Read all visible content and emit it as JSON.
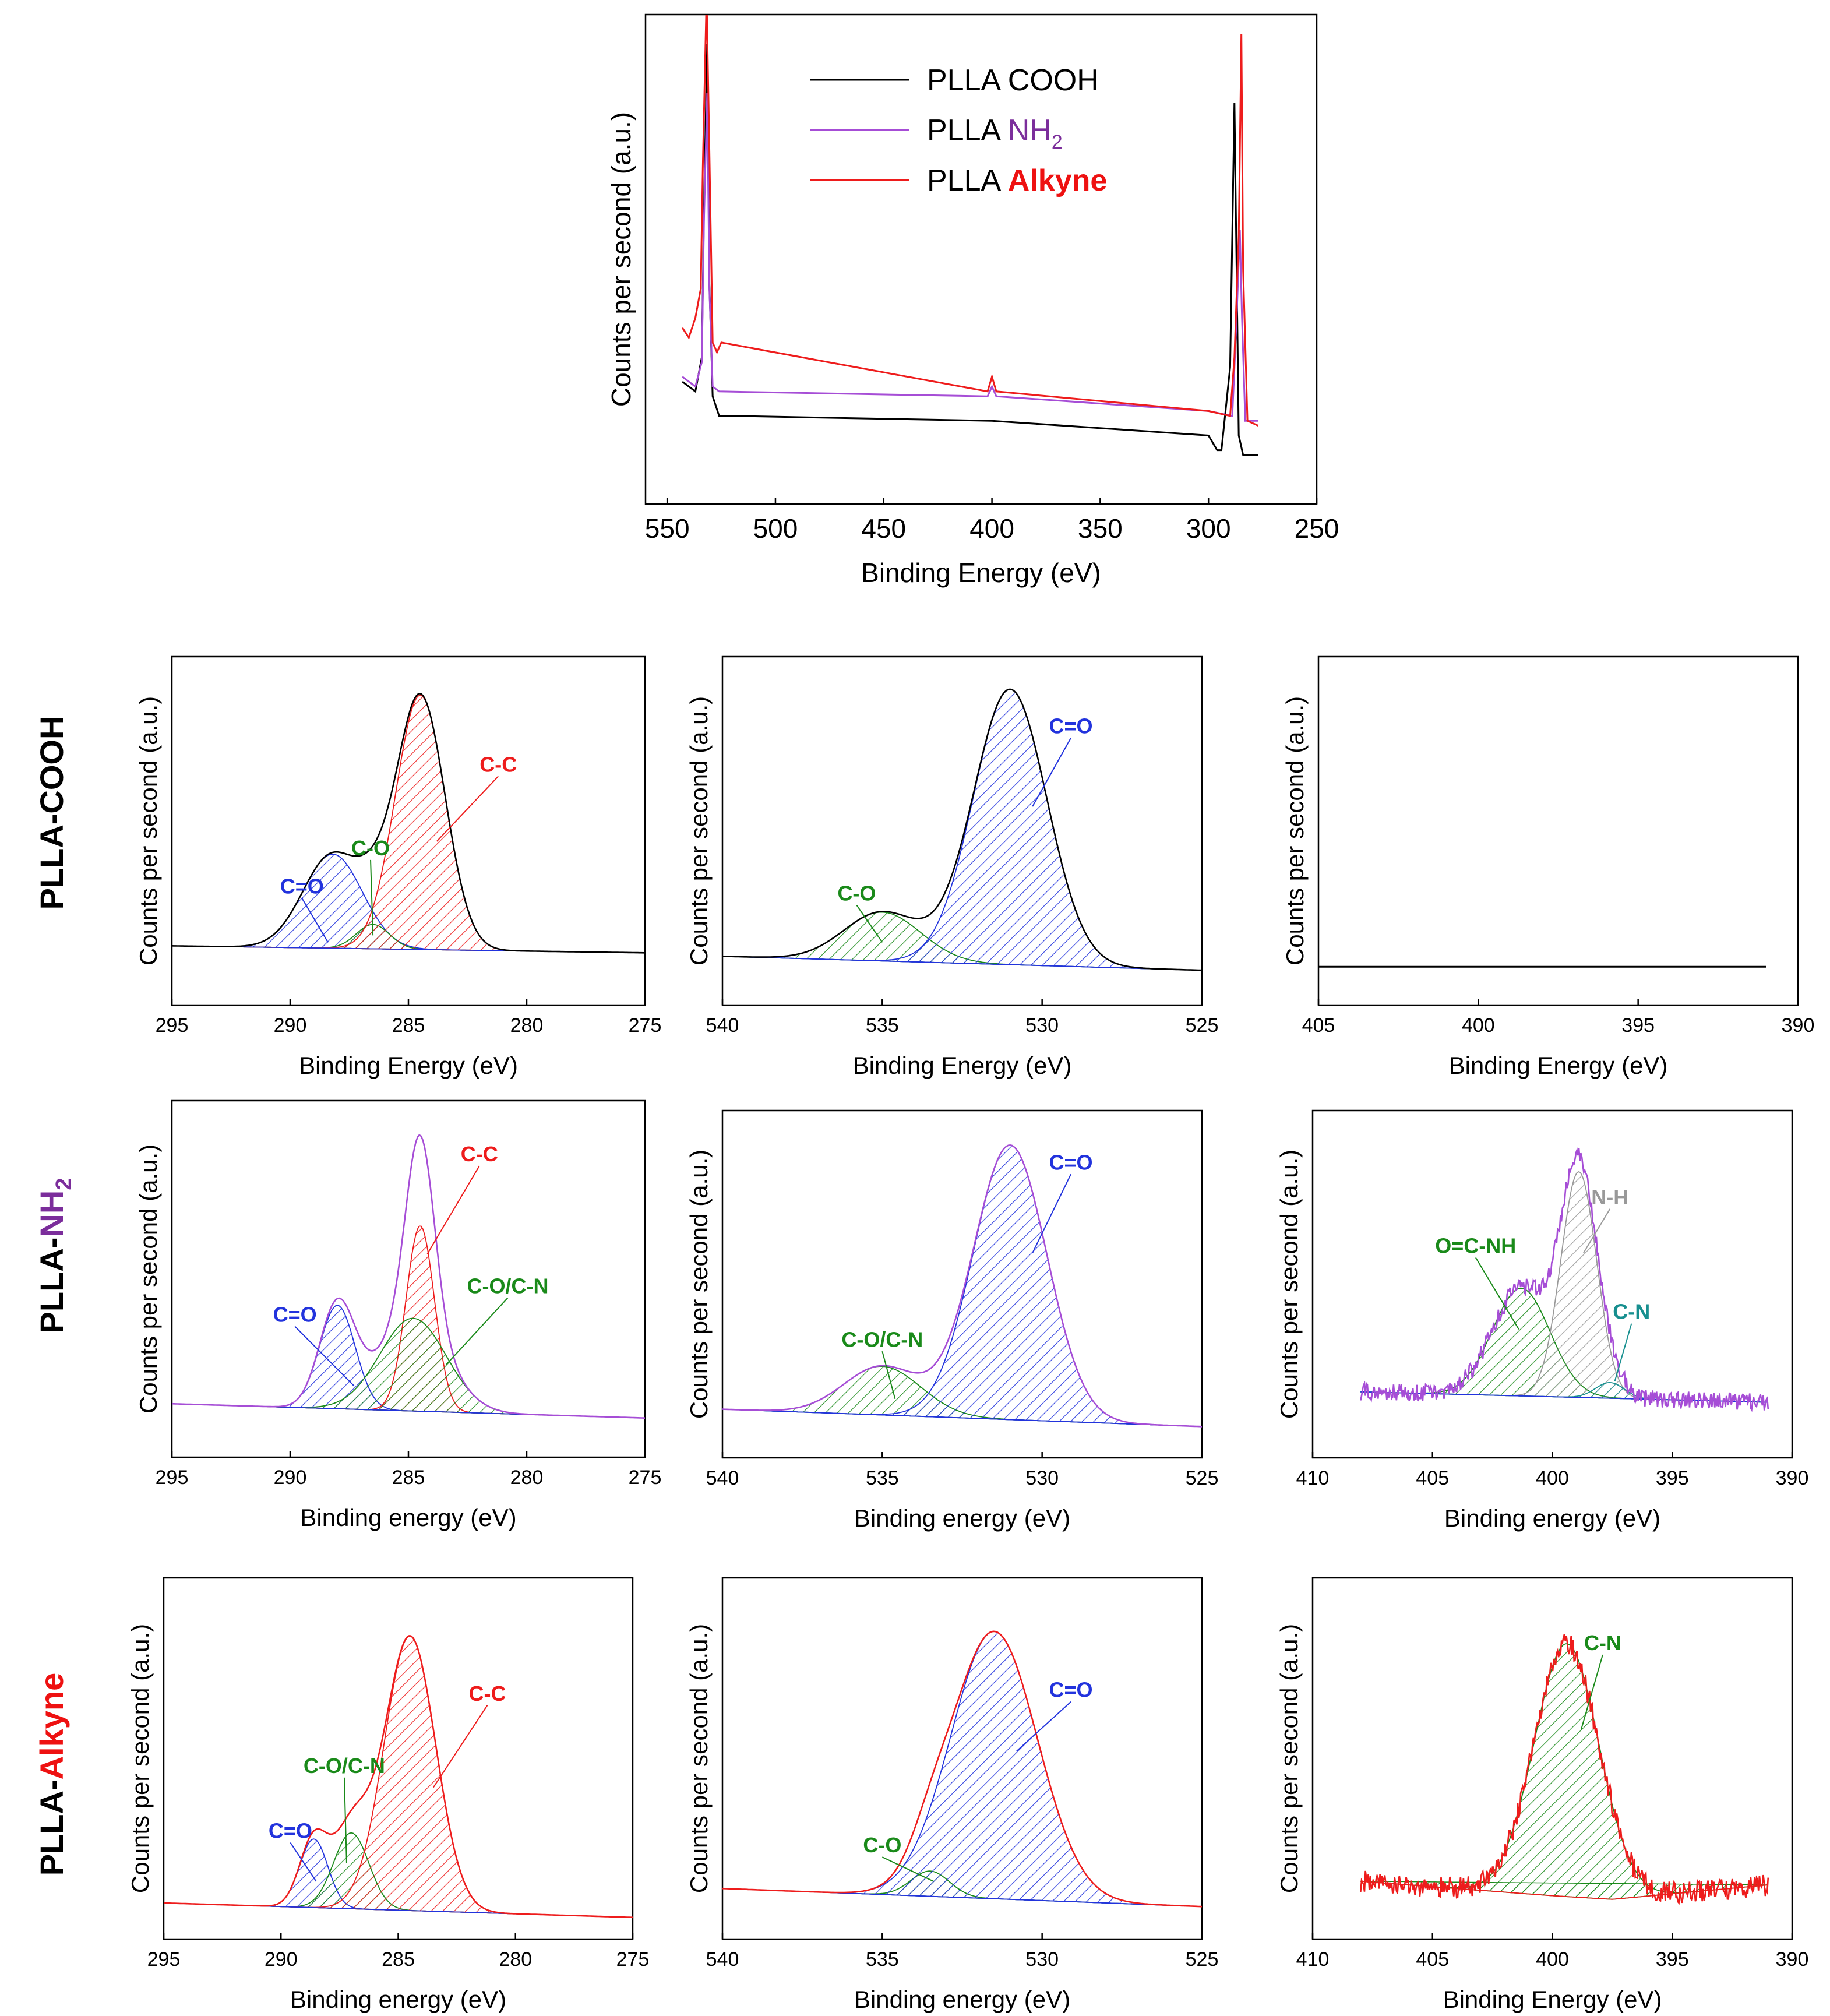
{
  "row_labels": [
    {
      "prefix": "PLLA-",
      "suffix": "COOH",
      "suffix_sub": "",
      "color": "#000000"
    },
    {
      "prefix": "PLLA-",
      "suffix": "NH",
      "suffix_sub": "2",
      "color": "#7b2d9b"
    },
    {
      "prefix": "PLLA-",
      "suffix": "Alkyne",
      "suffix_sub": "",
      "color": "#ee1111"
    }
  ],
  "colors": {
    "cooh": "#000000",
    "nh2": "#a64dd6",
    "alkyne": "#ee1c1c",
    "blue": "#2233dd",
    "green": "#1a8a1a",
    "red": "#ee1c1c",
    "gray": "#999999",
    "teal": "#178f8f",
    "nh2_label": "#7b2d9b"
  },
  "chart_data": [
    {
      "id": "survey",
      "type": "line",
      "xlabel": "Binding Energy (eV)",
      "ylabel": "Counts per second (a.u.)",
      "xlim": [
        560,
        250
      ],
      "ylim": [
        0,
        100
      ],
      "xticks": [
        550,
        500,
        450,
        400,
        350,
        300,
        250
      ],
      "legend_position": "top-center",
      "series": [
        {
          "name": "PLLA COOH",
          "legend_prefix": "PLLA ",
          "legend_suffix": "COOH",
          "legend_sub": "",
          "line_color": "#000000",
          "label_color": "#000000",
          "label_bold": false,
          "points": [
            [
              543,
              25
            ],
            [
              537,
              23
            ],
            [
              534,
              30
            ],
            [
              533,
              60
            ],
            [
              531.5,
              94
            ],
            [
              530.5,
              45
            ],
            [
              529,
              22
            ],
            [
              526,
              18
            ],
            [
              520,
              18
            ],
            [
              400,
              17
            ],
            [
              300,
              14
            ],
            [
              296,
              11
            ],
            [
              294,
              11
            ],
            [
              290,
              28
            ],
            [
              288,
              82
            ],
            [
              286,
              14
            ],
            [
              284,
              10
            ],
            [
              277,
              10
            ]
          ]
        },
        {
          "name": "PLLA NH2",
          "legend_prefix": "PLLA ",
          "legend_suffix": "NH",
          "legend_sub": "2",
          "line_color": "#a64dd6",
          "label_color": "#7b2d9b",
          "label_bold": false,
          "points": [
            [
              543,
              26
            ],
            [
              537,
              24
            ],
            [
              534,
              29
            ],
            [
              533,
              58
            ],
            [
              531.5,
              84
            ],
            [
              530.5,
              44
            ],
            [
              529,
              24
            ],
            [
              526,
              23
            ],
            [
              402,
              22
            ],
            [
              400,
              24
            ],
            [
              398,
              22
            ],
            [
              300,
              19
            ],
            [
              289,
              18
            ],
            [
              287,
              38
            ],
            [
              285.5,
              56
            ],
            [
              284.5,
              38
            ],
            [
              283,
              17
            ],
            [
              277,
              17
            ]
          ]
        },
        {
          "name": "PLLA Alkyne",
          "legend_prefix": "PLLA ",
          "legend_suffix": "Alkyne",
          "legend_sub": "",
          "line_color": "#ee1c1c",
          "label_color": "#ee1111",
          "label_bold": true,
          "points": [
            [
              543,
              36
            ],
            [
              540,
              34
            ],
            [
              537,
              38
            ],
            [
              534.5,
              44
            ],
            [
              533.5,
              70
            ],
            [
              531.8,
              104
            ],
            [
              530.5,
              72
            ],
            [
              529,
              33
            ],
            [
              527,
              31
            ],
            [
              525,
              33
            ],
            [
              402,
              23
            ],
            [
              400,
              26
            ],
            [
              398,
              23
            ],
            [
              300,
              19
            ],
            [
              290,
              18
            ],
            [
              288,
              30
            ],
            [
              286,
              55
            ],
            [
              284.8,
              96
            ],
            [
              284,
              48
            ],
            [
              282,
              17
            ],
            [
              277,
              16
            ]
          ]
        }
      ]
    },
    {
      "id": "cooh_c1s",
      "type": "line",
      "title": "",
      "xlabel": "Binding Energy (eV)",
      "ylabel": "Counts per second (a.u.)",
      "xlim": [
        295,
        275
      ],
      "ylim": [
        0,
        100
      ],
      "xticks": [
        295,
        290,
        285,
        280,
        275
      ],
      "envelope_color": "#000000",
      "baseline": [
        [
          295,
          17
        ],
        [
          275,
          15
        ]
      ],
      "peaks": [
        {
          "label": "C=O",
          "center": 288.2,
          "height": 27,
          "width": 1.25,
          "color": "#2233dd",
          "label_at": [
            289.5,
            32
          ],
          "leader_to": [
            288.4,
            18
          ]
        },
        {
          "label": "C-O",
          "center": 286.5,
          "height": 7,
          "width": 0.7,
          "color": "#1a8a1a",
          "label_at": [
            286.6,
            43
          ],
          "leader_to": [
            286.5,
            20
          ]
        },
        {
          "label": "C-C",
          "center": 284.5,
          "height": 73,
          "width": 1.05,
          "color": "#ee1c1c",
          "label_at": [
            281.2,
            67
          ],
          "leader_to": [
            283.8,
            47
          ]
        }
      ]
    },
    {
      "id": "cooh_o1s",
      "type": "line",
      "title": "",
      "xlabel": "Binding Energy (eV)",
      "ylabel": "Counts per second (a.u.)",
      "xlim": [
        540,
        525
      ],
      "ylim": [
        0,
        100
      ],
      "xticks": [
        540,
        535,
        530,
        525
      ],
      "envelope_color": "#000000",
      "baseline": [
        [
          540,
          14
        ],
        [
          525,
          10
        ]
      ],
      "peaks": [
        {
          "label": "C-O",
          "center": 535.0,
          "height": 14,
          "width": 1.2,
          "color": "#1a8a1a",
          "label_at": [
            535.8,
            30
          ],
          "leader_to": [
            535.0,
            18
          ]
        },
        {
          "label": "C=O",
          "center": 531.0,
          "height": 79,
          "width": 1.15,
          "color": "#2233dd",
          "label_at": [
            529.1,
            78
          ],
          "leader_to": [
            530.3,
            57
          ]
        }
      ]
    },
    {
      "id": "cooh_n1s",
      "type": "line",
      "title": "",
      "xlabel": "Binding Energy (eV)",
      "ylabel": "Counts per second (a.u.)",
      "xlim": [
        405,
        390
      ],
      "ylim": [
        0,
        100
      ],
      "xticks": [
        405,
        400,
        395,
        390
      ],
      "envelope_color": "#000000",
      "flat_line": [
        [
          405,
          11
        ],
        [
          391,
          11
        ]
      ],
      "peaks": []
    },
    {
      "id": "nh2_c1s",
      "type": "line",
      "title": "",
      "xlabel": "Binding energy (eV)",
      "ylabel": "Counts per second (a.u.)",
      "xlim": [
        295,
        275
      ],
      "ylim": [
        0,
        100
      ],
      "xticks": [
        295,
        290,
        285,
        280,
        275
      ],
      "envelope_color": "#a64dd6",
      "baseline": [
        [
          295,
          15
        ],
        [
          275,
          11
        ]
      ],
      "peaks": [
        {
          "label": "C=O",
          "center": 288.0,
          "height": 29,
          "width": 0.75,
          "color": "#2233dd",
          "label_at": [
            289.8,
            38
          ],
          "leader_to": [
            287.3,
            20
          ]
        },
        {
          "label": "C-C",
          "center": 284.5,
          "height": 52,
          "width": 0.6,
          "color": "#ee1c1c",
          "label_at": [
            282.0,
            83
          ],
          "leader_to": [
            284.2,
            57
          ]
        },
        {
          "label": "C-O/C-N",
          "center": 284.8,
          "height": 26,
          "width": 1.4,
          "color": "#1a8a1a",
          "label_at": [
            280.8,
            46
          ],
          "leader_to": [
            283.4,
            26
          ]
        }
      ]
    },
    {
      "id": "nh2_o1s",
      "type": "line",
      "title": "",
      "xlabel": "Binding energy (eV)",
      "ylabel": "Counts per second (a.u.)",
      "xlim": [
        540,
        525
      ],
      "ylim": [
        0,
        100
      ],
      "xticks": [
        540,
        535,
        530,
        525
      ],
      "envelope_color": "#a64dd6",
      "baseline": [
        [
          540,
          14
        ],
        [
          525,
          9
        ]
      ],
      "peaks": [
        {
          "label": "C-O/C-N",
          "center": 535.0,
          "height": 14,
          "width": 1.2,
          "color": "#1a8a1a",
          "label_at": [
            535.0,
            32
          ],
          "leader_to": [
            534.6,
            17
          ]
        },
        {
          "label": "C=O",
          "center": 531.0,
          "height": 79,
          "width": 1.15,
          "color": "#2233dd",
          "label_at": [
            529.1,
            83
          ],
          "leader_to": [
            530.3,
            59
          ]
        }
      ]
    },
    {
      "id": "nh2_n1s",
      "type": "line",
      "title": "",
      "xlabel": "Binding energy (eV)",
      "ylabel": "Counts per second (a.u.)",
      "xlim": [
        410,
        390
      ],
      "ylim": [
        0,
        100
      ],
      "xticks": [
        410,
        405,
        400,
        395,
        390
      ],
      "envelope_color": "#a64dd6",
      "noise": 2.5,
      "baseline": [
        [
          408,
          19
        ],
        [
          391,
          16
        ]
      ],
      "peaks": [
        {
          "label": "O=C-NH",
          "center": 401.3,
          "height": 31,
          "width": 1.2,
          "color": "#1a8a1a",
          "label_at": [
            403.2,
            59
          ],
          "leader_to": [
            401.4,
            37
          ]
        },
        {
          "label": "N-H",
          "center": 398.9,
          "height": 65,
          "width": 0.75,
          "color": "#999999",
          "label_at": [
            397.6,
            73
          ],
          "leader_to": [
            398.7,
            59
          ]
        },
        {
          "label": "C-N",
          "center": 397.6,
          "height": 4.5,
          "width": 0.6,
          "color": "#178f8f",
          "label_at": [
            396.7,
            40
          ],
          "leader_to": [
            397.4,
            22
          ]
        }
      ]
    },
    {
      "id": "alkyne_c1s",
      "type": "line",
      "title": "",
      "xlabel": "Binding energy (eV)",
      "ylabel": "Counts per second (a.u.)",
      "xlim": [
        295,
        275
      ],
      "ylim": [
        0,
        100
      ],
      "xticks": [
        295,
        290,
        285,
        280,
        275
      ],
      "envelope_color": "#ee1c1c",
      "baseline": [
        [
          295,
          10
        ],
        [
          275,
          6
        ]
      ],
      "peaks": [
        {
          "label": "C=O",
          "center": 288.6,
          "height": 19,
          "width": 0.6,
          "color": "#2233dd",
          "label_at": [
            289.6,
            28
          ],
          "leader_to": [
            288.5,
            16
          ]
        },
        {
          "label": "C-O/C-N",
          "center": 287.0,
          "height": 21,
          "width": 0.75,
          "color": "#1a8a1a",
          "label_at": [
            287.3,
            46
          ],
          "leader_to": [
            287.2,
            21
          ]
        },
        {
          "label": "C-C",
          "center": 284.5,
          "height": 76,
          "width": 1.1,
          "color": "#ee1c1c",
          "label_at": [
            281.2,
            66
          ],
          "leader_to": [
            283.5,
            42
          ]
        }
      ]
    },
    {
      "id": "alkyne_o1s",
      "type": "line",
      "title": "",
      "xlabel": "Binding energy (eV)",
      "ylabel": "Counts per second (a.u.)",
      "xlim": [
        540,
        525
      ],
      "ylim": [
        0,
        100
      ],
      "xticks": [
        540,
        535,
        530,
        525
      ],
      "envelope_color": "#ee1c1c",
      "baseline": [
        [
          540,
          14
        ],
        [
          525,
          9
        ]
      ],
      "peaks": [
        {
          "label": "C-O",
          "center": 533.5,
          "height": 7,
          "width": 0.6,
          "color": "#1a8a1a",
          "label_at": [
            535.0,
            24
          ],
          "leader_to": [
            533.4,
            16
          ]
        },
        {
          "label": "C=O",
          "center": 531.5,
          "height": 74,
          "width": 1.35,
          "color": "#2233dd",
          "label_at": [
            529.1,
            67
          ],
          "leader_to": [
            530.8,
            52
          ]
        }
      ]
    },
    {
      "id": "alkyne_n1s",
      "type": "line",
      "title": "",
      "xlabel": "Binding Energy (eV)",
      "ylabel": "Counts per second (a.u.)",
      "xlim": [
        410,
        390
      ],
      "ylim": [
        0,
        100
      ],
      "xticks": [
        410,
        405,
        400,
        395,
        390
      ],
      "envelope_color": "#ee1c1c",
      "noise": 3,
      "baseline": [
        [
          408,
          16
        ],
        [
          400,
          12
        ],
        [
          397.5,
          11
        ],
        [
          391,
          15
        ]
      ],
      "green_edges": [
        [
          408,
          16
        ],
        [
          391,
          15
        ]
      ],
      "peaks": [
        {
          "label": "C-N",
          "center": 399.4,
          "height": 70,
          "width": 1.35,
          "color": "#1a8a1a",
          "label_at": [
            397.9,
            80
          ],
          "leader_to": [
            398.8,
            58
          ]
        }
      ]
    }
  ]
}
